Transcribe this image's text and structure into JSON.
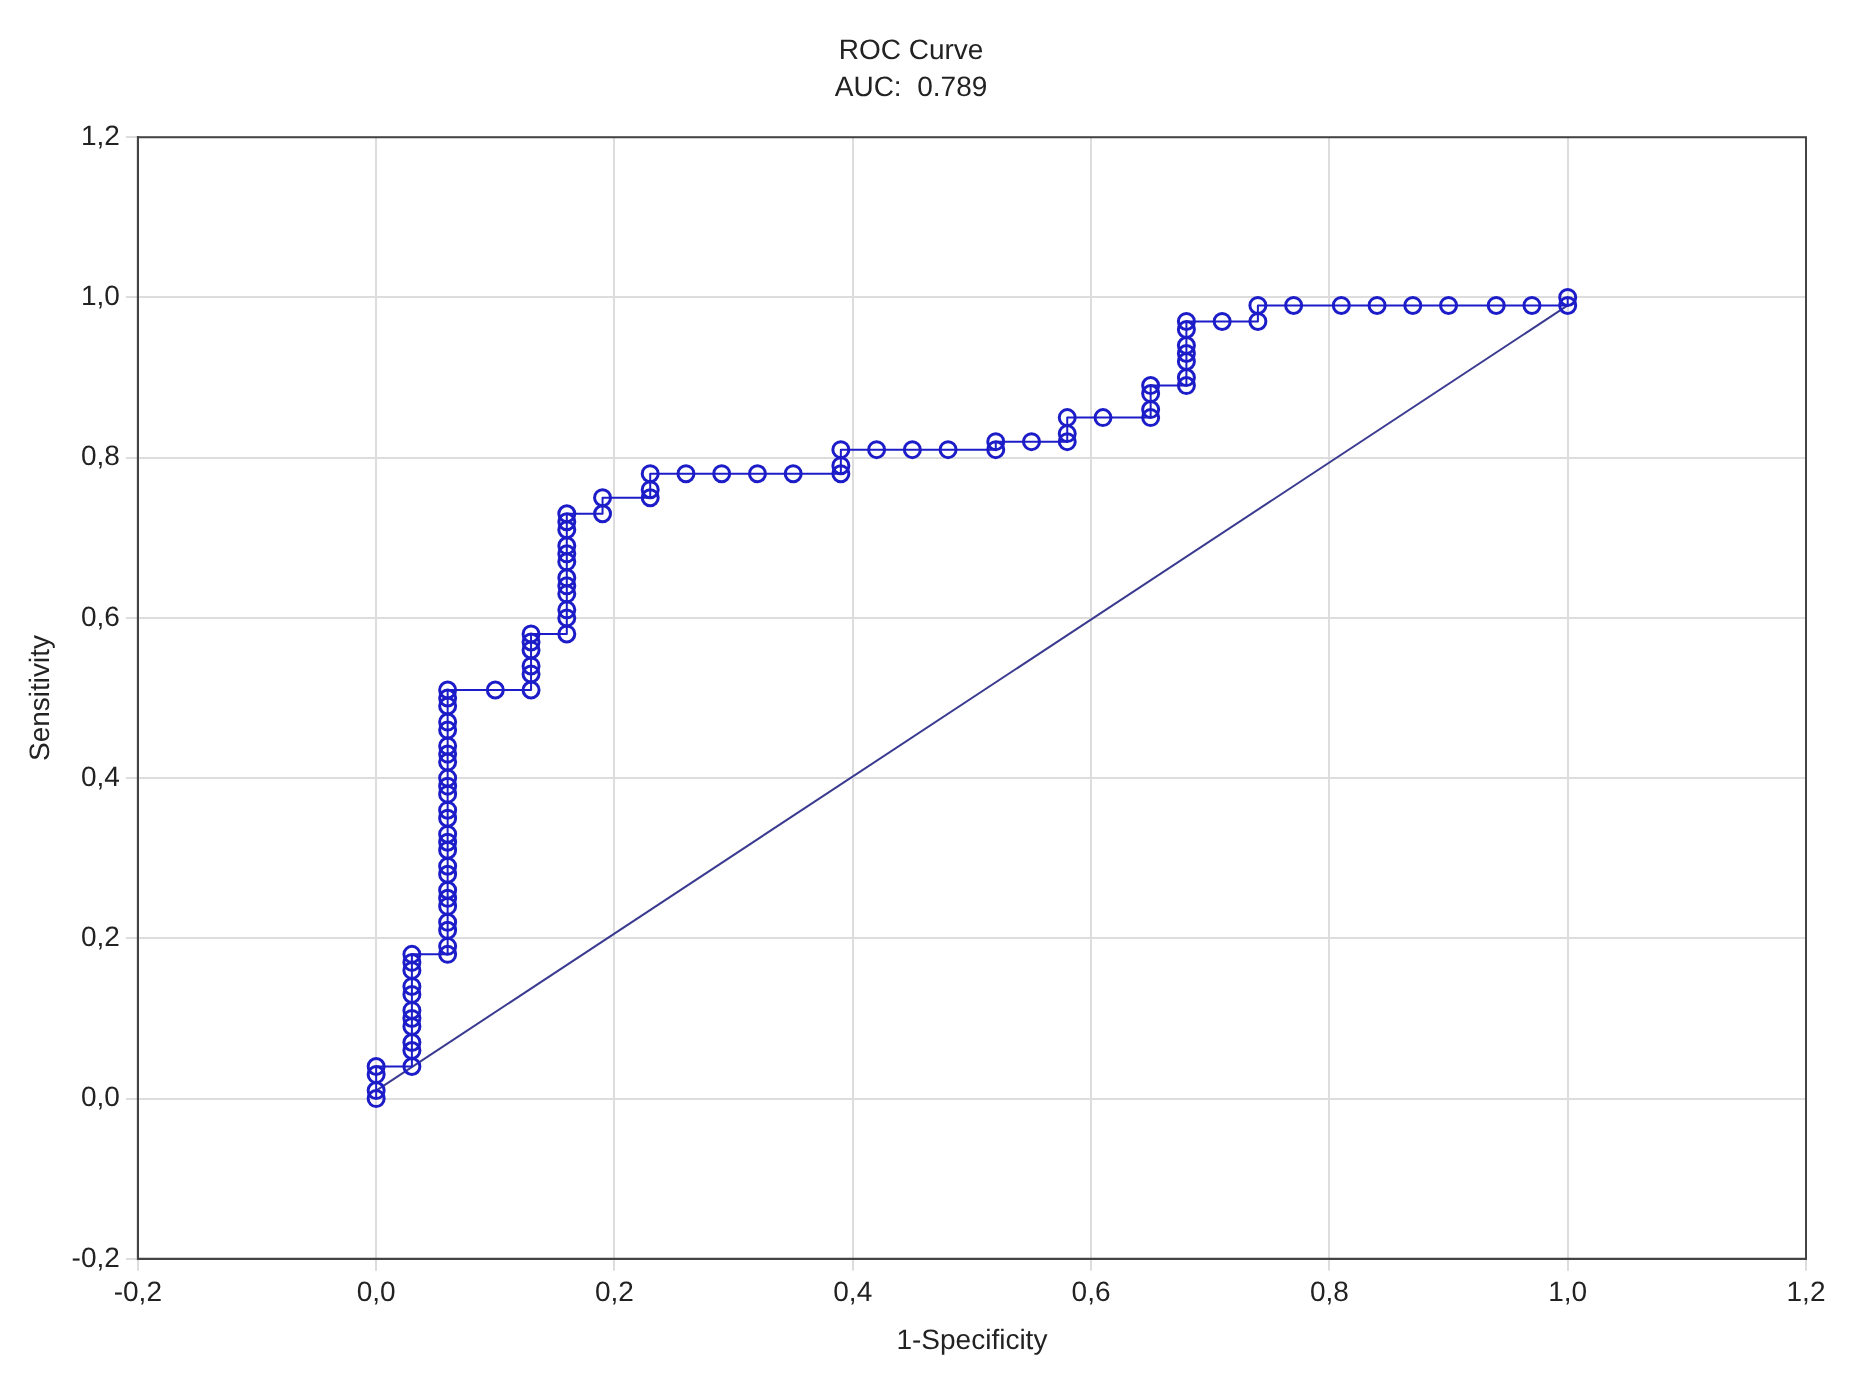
{
  "chart_data": {
    "type": "line",
    "title": "ROC Curve",
    "subtitle": "AUC:  0.789",
    "xlabel": "1-Specificity",
    "ylabel": "Sensitivity",
    "xlim": [
      -0.2,
      1.2
    ],
    "ylim": [
      -0.2,
      1.2
    ],
    "xticks": [
      {
        "value": -0.2,
        "label": "-0,2"
      },
      {
        "value": 0,
        "label": "0,0"
      },
      {
        "value": 0.2,
        "label": "0,2"
      },
      {
        "value": 0.4,
        "label": "0,4"
      },
      {
        "value": 0.6,
        "label": "0,6"
      },
      {
        "value": 0.8,
        "label": "0,8"
      },
      {
        "value": 1,
        "label": "1,0"
      },
      {
        "value": 1.2,
        "label": "1,2"
      }
    ],
    "yticks": [
      {
        "value": -0.2,
        "label": "-0,2"
      },
      {
        "value": 0,
        "label": "0,0"
      },
      {
        "value": 0.2,
        "label": "0,2"
      },
      {
        "value": 0.4,
        "label": "0,4"
      },
      {
        "value": 0.6,
        "label": "0,6"
      },
      {
        "value": 0.8,
        "label": "0,8"
      },
      {
        "value": 1,
        "label": "1,0"
      },
      {
        "value": 1.2,
        "label": "1,2"
      }
    ],
    "grid": true,
    "legend": false,
    "series": [
      {
        "color": "#1c1cc8",
        "marker": "circle",
        "line_style": "solid",
        "x": [
          0,
          0,
          0,
          0,
          0.03,
          0.03,
          0.03,
          0.03,
          0.03,
          0.03,
          0.03,
          0.03,
          0.03,
          0.03,
          0.03,
          0.06,
          0.06,
          0.06,
          0.06,
          0.06,
          0.06,
          0.06,
          0.06,
          0.06,
          0.06,
          0.06,
          0.06,
          0.06,
          0.06,
          0.06,
          0.06,
          0.06,
          0.06,
          0.06,
          0.06,
          0.06,
          0.06,
          0.06,
          0.06,
          0.06,
          0.1,
          0.13,
          0.13,
          0.13,
          0.13,
          0.13,
          0.13,
          0.16,
          0.16,
          0.16,
          0.16,
          0.16,
          0.16,
          0.16,
          0.16,
          0.16,
          0.16,
          0.16,
          0.16,
          0.19,
          0.19,
          0.23,
          0.23,
          0.23,
          0.26,
          0.29,
          0.32,
          0.35,
          0.39,
          0.39,
          0.39,
          0.42,
          0.45,
          0.48,
          0.52,
          0.52,
          0.55,
          0.58,
          0.58,
          0.58,
          0.61,
          0.65,
          0.65,
          0.65,
          0.65,
          0.68,
          0.68,
          0.68,
          0.68,
          0.68,
          0.68,
          0.68,
          0.71,
          0.74,
          0.74,
          0.77,
          0.81,
          0.84,
          0.87,
          0.9,
          0.94,
          0.97,
          1.0,
          1.0
        ],
        "values": [
          0,
          0.01,
          0.03,
          0.04,
          0.04,
          0.06,
          0.07,
          0.09,
          0.1,
          0.11,
          0.13,
          0.14,
          0.16,
          0.17,
          0.18,
          0.18,
          0.19,
          0.21,
          0.22,
          0.24,
          0.25,
          0.26,
          0.28,
          0.29,
          0.31,
          0.32,
          0.33,
          0.35,
          0.36,
          0.38,
          0.39,
          0.4,
          0.42,
          0.43,
          0.44,
          0.46,
          0.47,
          0.49,
          0.5,
          0.51,
          0.51,
          0.51,
          0.53,
          0.54,
          0.56,
          0.57,
          0.58,
          0.58,
          0.6,
          0.61,
          0.63,
          0.64,
          0.65,
          0.67,
          0.68,
          0.69,
          0.71,
          0.72,
          0.73,
          0.73,
          0.75,
          0.75,
          0.76,
          0.78,
          0.78,
          0.78,
          0.78,
          0.78,
          0.78,
          0.79,
          0.81,
          0.81,
          0.81,
          0.81,
          0.81,
          0.82,
          0.82,
          0.82,
          0.83,
          0.85,
          0.85,
          0.85,
          0.86,
          0.88,
          0.89,
          0.89,
          0.9,
          0.92,
          0.93,
          0.94,
          0.96,
          0.97,
          0.97,
          0.97,
          0.99,
          0.99,
          0.99,
          0.99,
          0.99,
          0.99,
          0.99,
          0.99,
          0.99,
          1.0
        ]
      },
      {
        "color": "#3a3a90",
        "marker": "none",
        "line_style": "solid",
        "x": [
          0,
          1
        ],
        "values": [
          0.01,
          0.99
        ]
      }
    ]
  }
}
